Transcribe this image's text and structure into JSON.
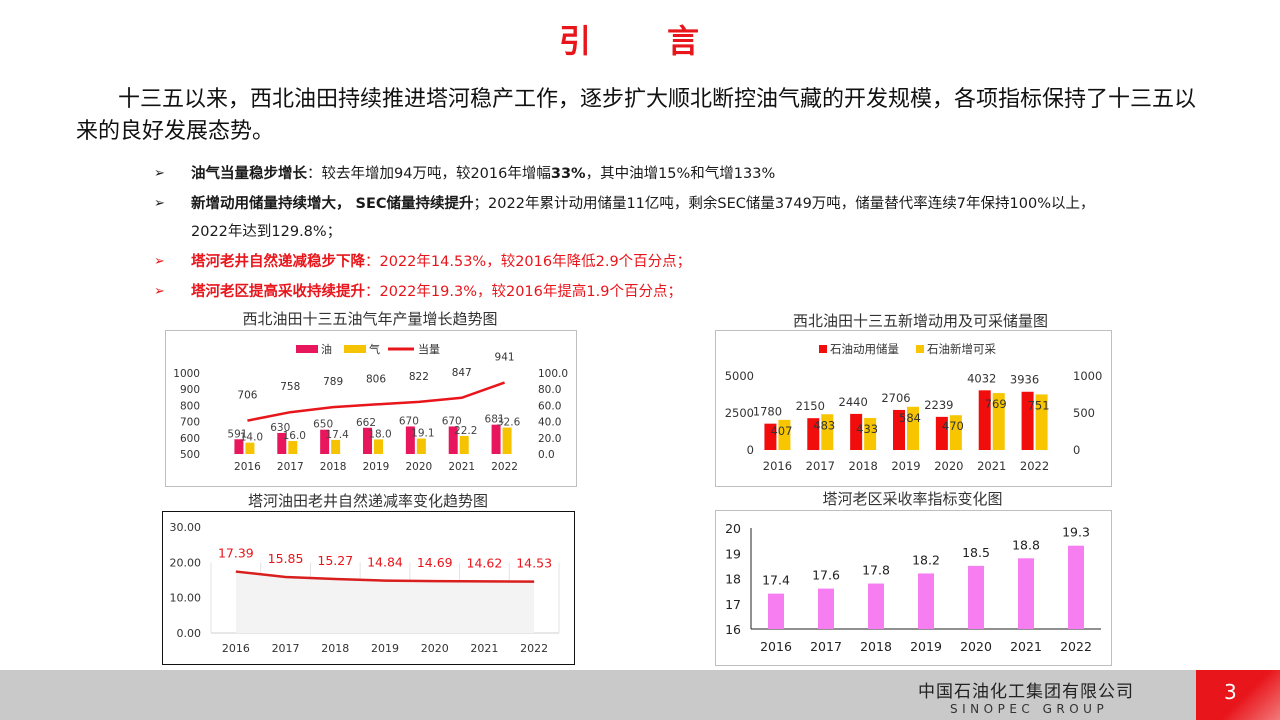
{
  "page": {
    "title": "引　言",
    "intro": "十三五以来，西北油田持续推进塔河稳产工作，逐步扩大顺北断控油气藏的开发规模，各项指标保持了十三五以来的良好发展态势。",
    "bullets": [
      {
        "lead": "油气当量稳步增长",
        "text": "：较去年增加94万吨，较2016年增幅",
        "b2": "33%",
        "text2": "，其中油增15%和气增133%"
      },
      {
        "lead": "新增动用储量持续增大， SEC储量持续提升",
        "text": "；2022年累计动用储量11亿吨，剩余SEC储量3749万吨，储量替代率连续7年保持100%以上，2022年达到129.8%；"
      },
      {
        "lead": "塔河老井自然递减稳步下降",
        "text": "：2022年",
        "r1": "14.53%",
        "text2": "，较2016年降低",
        "r2": "2.9个百分点；"
      },
      {
        "lead": "塔河老区提高采收持续提升",
        "text": "：2022年",
        "r1": "19.3%",
        "text2": "，较2016年提高",
        "r2": "1.9",
        "text3": "个百分点；"
      }
    ],
    "footer": {
      "company_cn": "中国石油化工集团有限公司",
      "company_en": "SINOPEC GROUP",
      "page_number": "3"
    }
  },
  "chart_data": [
    {
      "type": "bar",
      "title": "西北油田十三五油气年产量增长趋势图",
      "categories": [
        "2016",
        "2017",
        "2018",
        "2019",
        "2020",
        "2021",
        "2022"
      ],
      "series": [
        {
          "name": "油",
          "type": "bar",
          "values": [
            591,
            630,
            650,
            662,
            670,
            670,
            681
          ],
          "color": "#e8175d"
        },
        {
          "name": "气",
          "type": "bar",
          "axis": "right",
          "values": [
            14.0,
            16.0,
            17.4,
            18.0,
            19.1,
            22.2,
            32.6
          ],
          "color": "#f5c300"
        },
        {
          "name": "当量",
          "type": "line",
          "values": [
            706,
            758,
            789,
            806,
            822,
            847,
            941
          ],
          "color": "#e8151b"
        }
      ],
      "ylim": [
        500,
        1000
      ],
      "yticks": [
        "1000",
        "900",
        "800",
        "700",
        "600",
        "500"
      ],
      "y2lim": [
        0,
        100
      ],
      "y2ticks": [
        "100.0",
        "80.0",
        "60.0",
        "40.0",
        "20.0",
        "0.0"
      ],
      "legend": "top"
    },
    {
      "type": "bar",
      "title": "西北油田十三五新增动用及可采储量图",
      "categories": [
        "2016",
        "2017",
        "2018",
        "2019",
        "2020",
        "2021",
        "2022"
      ],
      "series": [
        {
          "name": "石油动用储量",
          "values": [
            1780,
            2150,
            2440,
            2706,
            2239,
            4032,
            3936
          ],
          "color": "#f20d0d"
        },
        {
          "name": "石油新增可采",
          "axis": "right",
          "values": [
            407,
            483,
            433,
            584,
            470,
            769,
            751
          ],
          "color": "#f7c600"
        }
      ],
      "ylim": [
        0,
        5000
      ],
      "yticks": [
        "5000",
        "2500",
        "0"
      ],
      "y2lim": [
        0,
        1000
      ],
      "y2ticks": [
        "1000",
        "500",
        "0"
      ],
      "legend": "top"
    },
    {
      "type": "line",
      "title": "塔河油田老井自然递减率变化趋势图",
      "categories": [
        "2016",
        "2017",
        "2018",
        "2019",
        "2020",
        "2021",
        "2022"
      ],
      "series": [
        {
          "name": "",
          "values": [
            17.39,
            15.85,
            15.27,
            14.84,
            14.69,
            14.62,
            14.53
          ],
          "color": "#d91e1e"
        }
      ],
      "ylim": [
        0,
        30
      ],
      "yticks": [
        "30.00",
        "20.00",
        "10.00",
        "0.00"
      ],
      "grid": true
    },
    {
      "type": "bar",
      "title": "塔河老区采收率指标变化图",
      "categories": [
        "2016",
        "2017",
        "2018",
        "2019",
        "2020",
        "2021",
        "2022"
      ],
      "series": [
        {
          "name": "",
          "values": [
            17.4,
            17.6,
            17.8,
            18.2,
            18.5,
            18.8,
            19.3
          ],
          "color": "#f77ef0"
        }
      ],
      "ylim": [
        16,
        20
      ],
      "yticks": [
        "20",
        "19",
        "18",
        "17",
        "16"
      ]
    }
  ]
}
